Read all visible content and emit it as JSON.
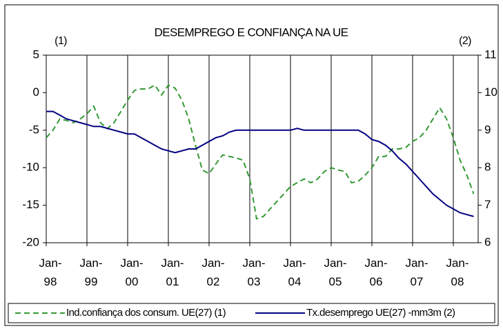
{
  "chart_data": {
    "type": "line",
    "title": "DESEMPREGO E CONFIANÇA NA UE",
    "annotations": [
      "(1)",
      "(2)"
    ],
    "categories": [
      "Jan-98",
      null,
      null,
      null,
      null,
      null,
      "Jan-99",
      null,
      null,
      null,
      null,
      null,
      "Jan-00",
      null,
      null,
      null,
      null,
      null,
      "Jan-01",
      null,
      null,
      null,
      null,
      null,
      "Jan-02",
      null,
      null,
      null,
      null,
      null,
      "Jan-03",
      null,
      null,
      null,
      null,
      null,
      "Jan-04",
      null,
      null,
      null,
      null,
      null,
      "Jan-05",
      null,
      null,
      null,
      null,
      null,
      "Jan-06",
      null,
      null,
      null,
      null,
      null,
      "Jan-07",
      null,
      null,
      null,
      null,
      null,
      "Jan-08",
      null,
      null,
      null
    ],
    "series": [
      {
        "name": "Ind.confiança dos consum. UE(27) (1)",
        "color": "#339933",
        "dashed": true,
        "values": [
          -6,
          -5,
          -3.5,
          -3.7,
          -4,
          -3.5,
          -2.8,
          -1.8,
          -4,
          -4.8,
          -4,
          -2.5,
          -1,
          0.3,
          0.5,
          0.5,
          1,
          -0.3,
          1,
          0.6,
          -1,
          -3.5,
          -7,
          -10.3,
          -10.8,
          -9.5,
          -8.3,
          -8.5,
          -8.7,
          -9,
          -11.5,
          -16.8,
          -16.5,
          -15.5,
          -14.5,
          -13.5,
          -12.5,
          -12,
          -11.5,
          -12,
          -11.5,
          -10.5,
          -10,
          -10.3,
          -10.5,
          -12,
          -11.8,
          -11,
          -10,
          -8.5,
          -8.5,
          -7.5,
          -7.5,
          -7.3,
          -6.5,
          -6,
          -5,
          -3.5,
          -2,
          -3.5,
          -6,
          -9,
          -11,
          -13.5
        ]
      },
      {
        "name": "Tx.desemprego UE(27) -mm3m (2)",
        "color": "#000080",
        "axis": "y2",
        "values": [
          9.5,
          9.5,
          9.4,
          9.3,
          9.25,
          9.2,
          9.15,
          9.1,
          9.1,
          9.05,
          9,
          8.95,
          8.9,
          8.9,
          8.8,
          8.7,
          8.6,
          8.5,
          8.45,
          8.4,
          8.45,
          8.5,
          8.5,
          8.6,
          8.7,
          8.8,
          8.85,
          8.95,
          9,
          9,
          9,
          9,
          9,
          9,
          9,
          9,
          9,
          9.05,
          9,
          9,
          9,
          9,
          9,
          9,
          9,
          9,
          9,
          8.9,
          8.75,
          8.7,
          8.6,
          8.45,
          8.25,
          8.1,
          7.9,
          7.7,
          7.5,
          7.3,
          7.15,
          7,
          6.9,
          6.8,
          6.75,
          6.7
        ]
      }
    ],
    "ylim": [
      -20,
      5
    ],
    "yticks": [
      -20,
      -15,
      -10,
      -5,
      0,
      5
    ],
    "y2lim": [
      6,
      11
    ],
    "y2ticks": [
      6,
      7,
      8,
      9,
      10,
      11
    ],
    "vertical_grid": true,
    "legend": "bottom"
  }
}
